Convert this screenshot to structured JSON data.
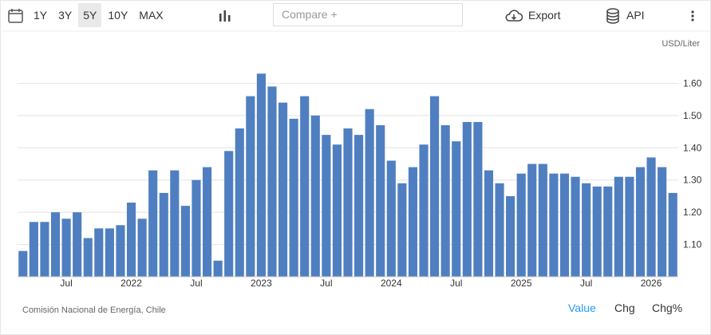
{
  "toolbar": {
    "ranges": [
      "1Y",
      "3Y",
      "5Y",
      "10Y",
      "MAX"
    ],
    "active_range": 2,
    "compare": "Compare +",
    "export": "Export",
    "api": "API"
  },
  "footer": {
    "modes": [
      "Value",
      "Chg",
      "Chg%"
    ],
    "active_mode": 0
  },
  "chart_data": {
    "type": "bar",
    "y_unit": "USD/Liter",
    "source": "Comisión Nacional de Energía, Chile",
    "color": "#4f7fc0",
    "grid": true,
    "categories": [
      null,
      null,
      null,
      null,
      "Jul",
      null,
      null,
      null,
      null,
      null,
      "2022",
      null,
      null,
      null,
      null,
      null,
      "Jul",
      null,
      null,
      null,
      null,
      null,
      "2023",
      null,
      null,
      null,
      null,
      null,
      "Jul",
      null,
      null,
      null,
      null,
      null,
      "2024",
      null,
      null,
      null,
      null,
      null,
      "Jul",
      null,
      null,
      null,
      null,
      null,
      "2025",
      null,
      null,
      null,
      null,
      null,
      "Jul",
      null,
      null,
      null,
      null,
      null,
      "2026",
      null,
      null
    ],
    "values": [
      1.08,
      1.17,
      1.17,
      1.2,
      1.18,
      1.2,
      1.12,
      1.15,
      1.15,
      1.16,
      1.23,
      1.18,
      1.33,
      1.26,
      1.33,
      1.22,
      1.3,
      1.34,
      1.05,
      1.39,
      1.46,
      1.56,
      1.63,
      1.59,
      1.54,
      1.49,
      1.56,
      1.5,
      1.44,
      1.41,
      1.46,
      1.44,
      1.52,
      1.47,
      1.36,
      1.29,
      1.34,
      1.41,
      1.56,
      1.47,
      1.42,
      1.48,
      1.48,
      1.33,
      1.29,
      1.25,
      1.32,
      1.35,
      1.35,
      1.32,
      1.32,
      1.31,
      1.29,
      1.28,
      1.28,
      1.31,
      1.31,
      1.34,
      1.37,
      1.34,
      1.26
    ],
    "ylim": [
      1.0,
      1.7
    ],
    "yticks": [
      {
        "value": 1.1,
        "label": "1.10"
      },
      {
        "value": 1.2,
        "label": "1.20"
      },
      {
        "value": 1.3,
        "label": "1.30"
      },
      {
        "value": 1.4,
        "label": "1.40"
      },
      {
        "value": 1.5,
        "label": "1.50"
      },
      {
        "value": 1.6,
        "label": "1.60"
      }
    ]
  }
}
